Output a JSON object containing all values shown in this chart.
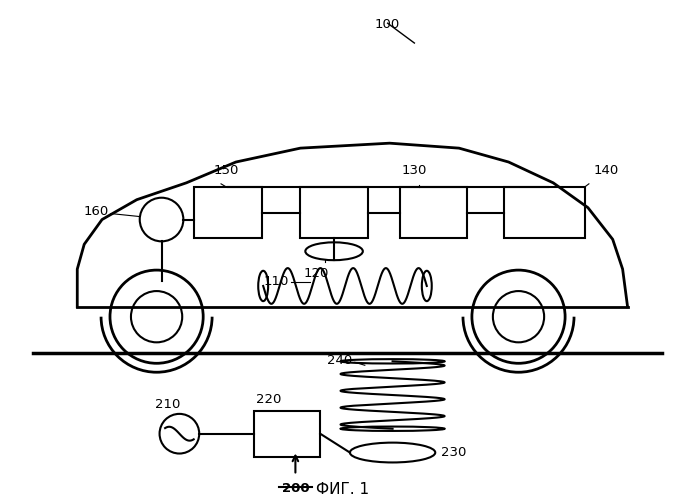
{
  "title": "ФИГ. 1",
  "label_100": "100",
  "label_110": "110",
  "label_120": "120",
  "label_130": "130",
  "label_140": "140",
  "label_150": "150",
  "label_160": "160",
  "label_200": "200",
  "label_210": "210",
  "label_220": "220",
  "label_230": "230",
  "label_240": "240",
  "line_color": "#000000",
  "bg_color": "#ffffff",
  "fig_width": 6.86,
  "fig_height": 5.0,
  "label_fontsize": 9.5,
  "title_fontsize": 11
}
